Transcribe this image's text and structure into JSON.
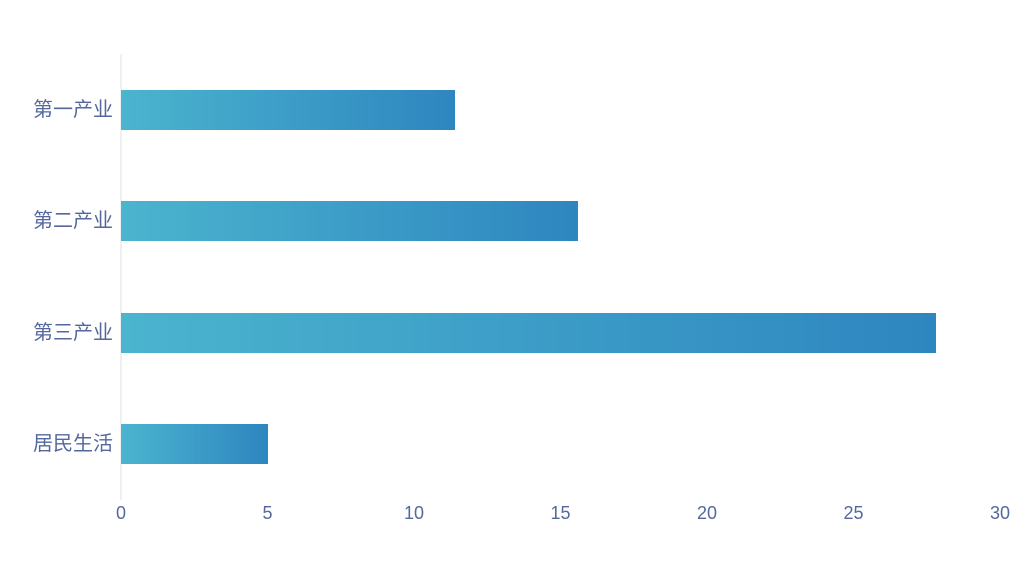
{
  "chart_data": {
    "type": "bar",
    "orientation": "horizontal",
    "categories": [
      "第一产业",
      "第二产业",
      "第三产业",
      "居民生活"
    ],
    "values": [
      11.4,
      15.6,
      27.8,
      5
    ],
    "xlim": [
      0,
      30
    ],
    "x_ticks": [
      0,
      5,
      10,
      15,
      20,
      25,
      30
    ],
    "grid": "off",
    "legend_position": "none",
    "colors": {
      "bar_gradient_start": "#4bb4ce",
      "bar_gradient_end": "#2e86c0",
      "axis_label": "#54689e",
      "axis_line": "#f0f0f0",
      "background": "#ffffff"
    }
  }
}
